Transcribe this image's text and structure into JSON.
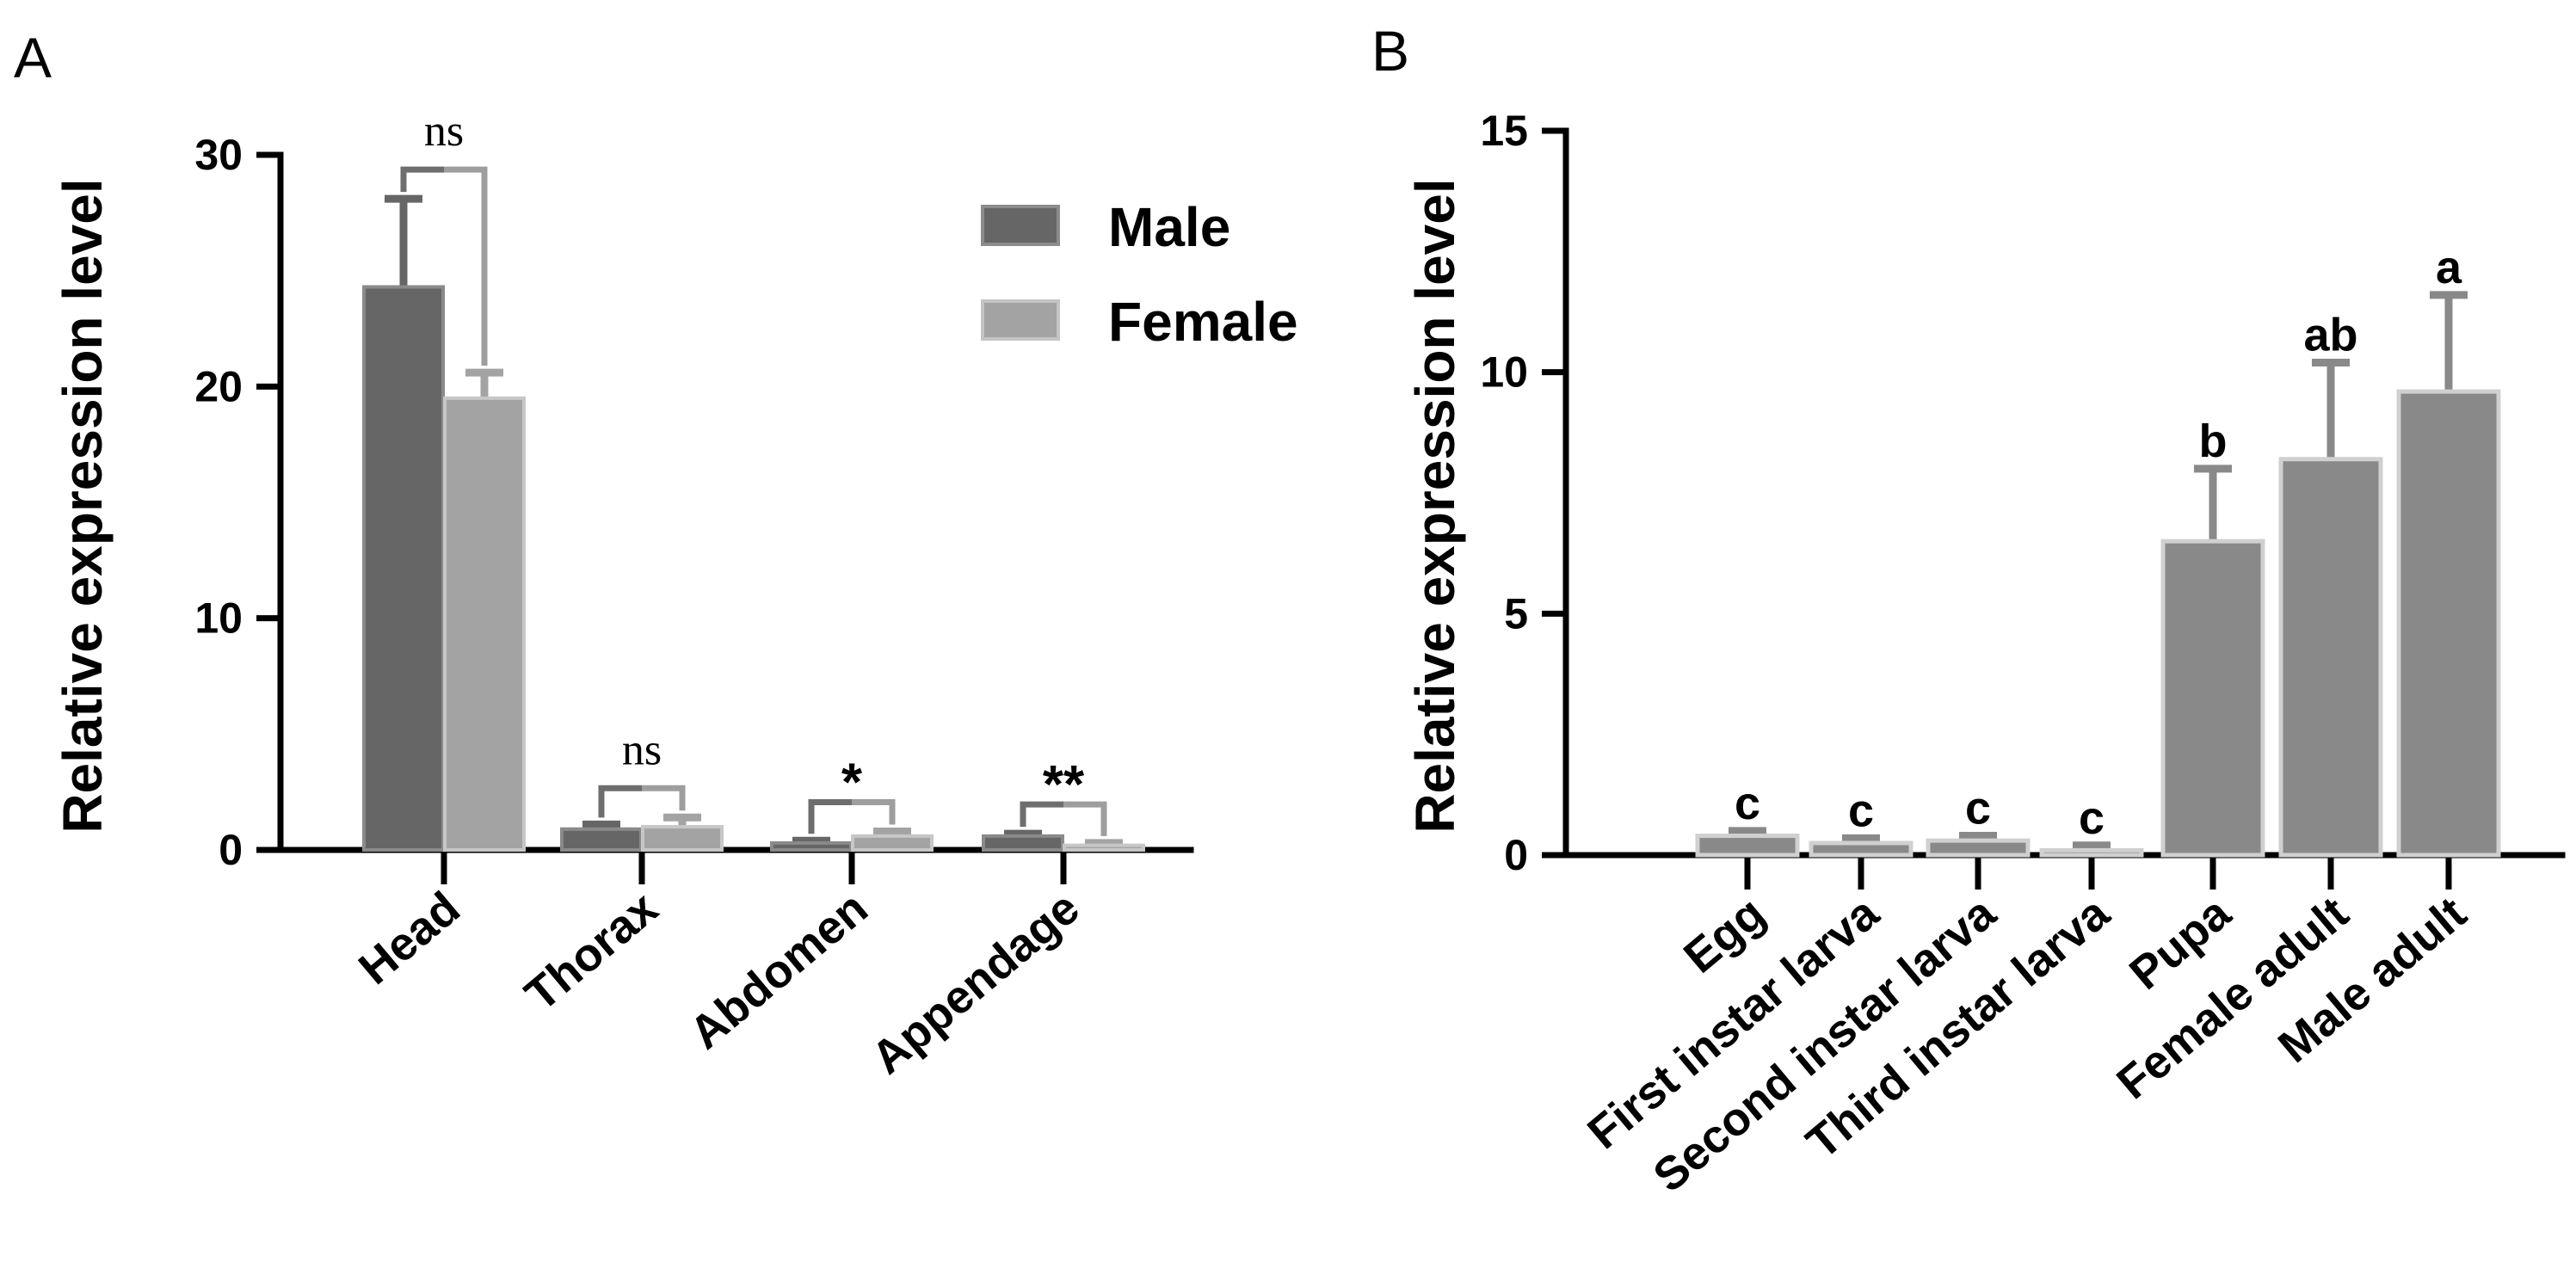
{
  "chart_data": [
    {
      "panel": "A",
      "type": "bar",
      "ylabel": "Relative  expression  level",
      "xlabel": "",
      "ylim": [
        0,
        30
      ],
      "yticks": [
        0,
        10,
        20,
        30
      ],
      "categories": [
        "Head",
        "Thorax",
        "Abdomen",
        "Appendage"
      ],
      "series": [
        {
          "name": "Male",
          "color": "#666666",
          "values": [
            24.3,
            0.9,
            0.3,
            0.6
          ],
          "errors": [
            3.8,
            0.2,
            0.1,
            0.1
          ]
        },
        {
          "name": "Female",
          "color": "#a3a3a3",
          "values": [
            19.5,
            1.0,
            0.6,
            0.2
          ],
          "errors": [
            1.1,
            0.4,
            0.2,
            0.1
          ]
        }
      ],
      "legend": {
        "position": "top-right",
        "entries": [
          "Male",
          "Female"
        ]
      },
      "significance": [
        {
          "category": "Head",
          "label": "ns"
        },
        {
          "category": "Thorax",
          "label": "ns"
        },
        {
          "category": "Abdomen",
          "label": "*"
        },
        {
          "category": "Appendage",
          "label": "**"
        }
      ],
      "colors": {
        "bracket_left": "#6e6e6e",
        "bracket_right": "#9e9e9e"
      }
    },
    {
      "panel": "B",
      "type": "bar",
      "ylabel": "Relative  expression  level",
      "xlabel": "",
      "ylim": [
        0,
        15
      ],
      "yticks": [
        0,
        5,
        10,
        15
      ],
      "categories": [
        "Egg",
        "First instar larva",
        "Second instar larva",
        "Third  instar larva",
        "Pupa",
        "Female adult",
        "Male adult"
      ],
      "values": [
        0.4,
        0.25,
        0.3,
        0.1,
        6.5,
        8.2,
        9.6
      ],
      "errors": [
        0.1,
        0.1,
        0.1,
        0.1,
        1.5,
        2.0,
        2.0
      ],
      "letters": [
        "c",
        "c",
        "c",
        "c",
        "b",
        "ab",
        "a"
      ],
      "color": "#898989"
    }
  ]
}
